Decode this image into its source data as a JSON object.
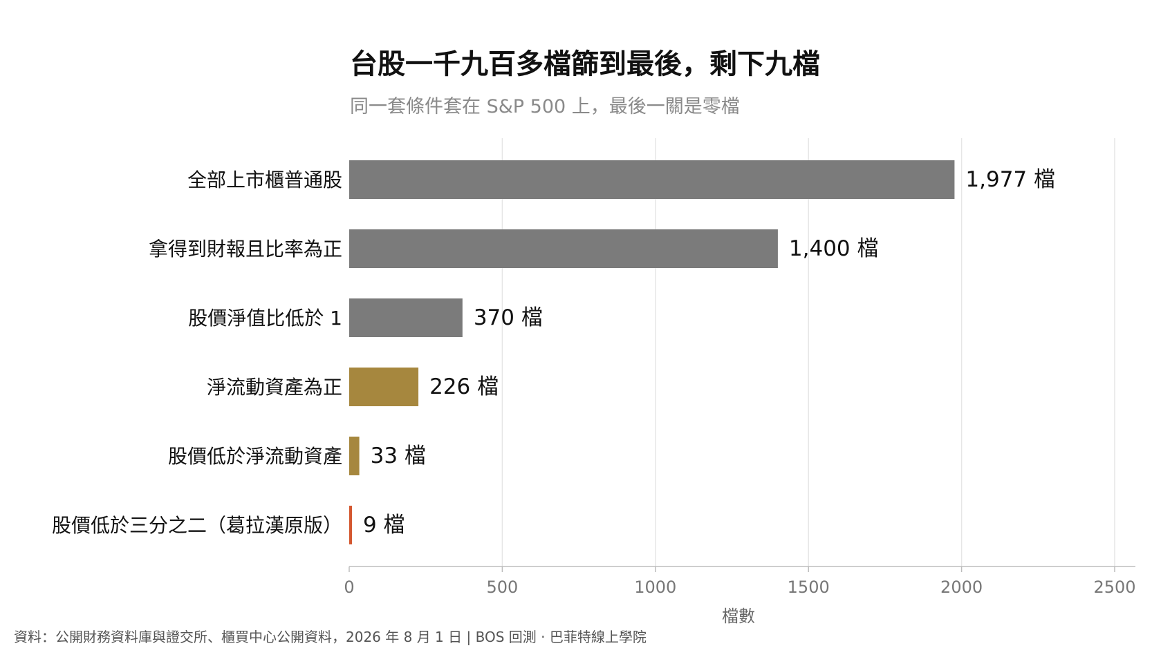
{
  "title": "台股一千九百多檔篩到最後，剩下九檔",
  "subtitle": "同一套條件套在 S&P 500 上，最後一關是零檔",
  "source": "資料：公開財務資料庫與證交所、櫃買中心公開資料，2026 年 8 月 1 日 | BOS 回測 · 巴菲特線上學院",
  "chart_data": {
    "type": "bar",
    "orientation": "horizontal",
    "categories": [
      "全部上市櫃普通股",
      "拿得到財報且比率為正",
      "股價淨值比低於 1",
      "淨流動資產為正",
      "股價低於淨流動資產",
      "股價低於三分之二（葛拉漢原版）"
    ],
    "values": [
      1977,
      1400,
      370,
      226,
      33,
      9
    ],
    "value_labels": [
      "1,977 檔",
      "1,400 檔",
      "370 檔",
      "226 檔",
      "33 檔",
      "9 檔"
    ],
    "bar_colors": [
      "#7b7b7b",
      "#7b7b7b",
      "#7b7b7b",
      "#a6873e",
      "#a6873e",
      "#d4572f"
    ],
    "xlabel": "檔數",
    "ylabel": "",
    "xlim": [
      0,
      2500
    ],
    "xticks": [
      "0",
      "500",
      "1000",
      "1500",
      "2000",
      "2500"
    ],
    "tick_values": [
      0,
      500,
      1000,
      1500,
      2000,
      2500
    ],
    "grid": "vertical"
  }
}
